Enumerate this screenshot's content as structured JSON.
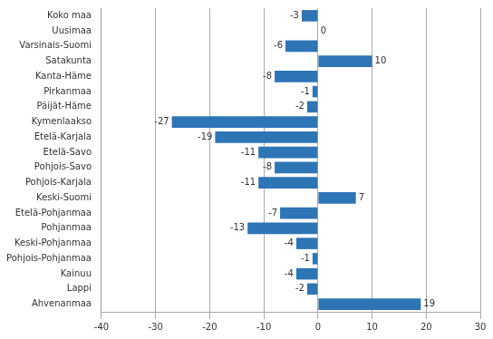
{
  "chart_data": {
    "type": "bar",
    "orientation": "horizontal",
    "categories": [
      "Koko maa",
      "Uusimaa",
      "Varsinais-Suomi",
      "Satakunta",
      "Kanta-Häme",
      "Pirkanmaa",
      "Päijät-Häme",
      "Kymenlaakso",
      "Etelä-Karjala",
      "Etelä-Savo",
      "Pohjois-Savo",
      "Pohjois-Karjala",
      "Keski-Suomi",
      "Etelä-Pohjanmaa",
      "Pohjanmaa",
      "Keski-Pohjanmaa",
      "Pohjois-Pohjanmaa",
      "Kainuu",
      "Lappi",
      "Ahvenanmaa"
    ],
    "values": [
      -3,
      0,
      -6,
      10,
      -8,
      -1,
      -2,
      -27,
      -19,
      -11,
      -8,
      -11,
      7,
      -7,
      -13,
      -4,
      -1,
      -4,
      -2,
      19
    ],
    "color": "#2E75B6",
    "xlim": [
      -40,
      30
    ],
    "xticks": [
      -40,
      -30,
      -20,
      -10,
      0,
      10,
      20,
      30
    ],
    "grid": true,
    "data_labels": true
  }
}
